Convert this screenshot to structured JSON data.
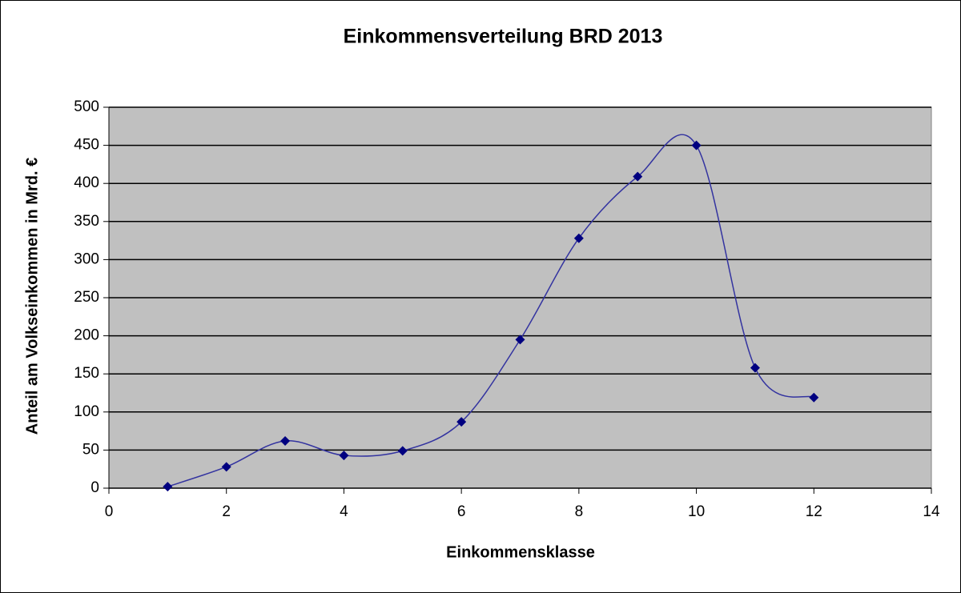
{
  "chart_data": {
    "type": "line",
    "title": "Einkommensverteilung BRD 2013",
    "x_label": "Einkommensklasse",
    "y_label": "Anteil am Volkseinkommen in Mrd. €",
    "x": [
      1,
      2,
      3,
      4,
      5,
      6,
      7,
      8,
      9,
      10,
      11,
      12
    ],
    "series": [
      {
        "color": "#000080",
        "values": [
          2,
          28,
          62,
          43,
          49,
          87,
          195,
          328,
          409,
          450,
          158,
          119
        ]
      }
    ],
    "xlim": [
      0,
      14
    ],
    "xticks": [
      0,
      2,
      4,
      6,
      8,
      10,
      12,
      14
    ],
    "ylim": [
      0,
      500
    ],
    "yticks": [
      0,
      50,
      100,
      150,
      200,
      250,
      300,
      350,
      400,
      450,
      500
    ],
    "grid": true,
    "smooth": true
  }
}
